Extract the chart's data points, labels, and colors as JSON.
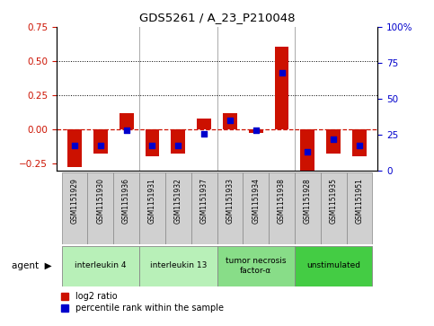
{
  "title": "GDS5261 / A_23_P210048",
  "samples": [
    "GSM1151929",
    "GSM1151930",
    "GSM1151936",
    "GSM1151931",
    "GSM1151932",
    "GSM1151937",
    "GSM1151933",
    "GSM1151934",
    "GSM1151938",
    "GSM1151928",
    "GSM1151935",
    "GSM1151951"
  ],
  "log2_ratio": [
    -0.28,
    -0.18,
    0.12,
    -0.2,
    -0.18,
    0.08,
    0.12,
    -0.03,
    0.6,
    -0.32,
    -0.18,
    -0.2
  ],
  "percentile": [
    17.5,
    17.5,
    28,
    17.5,
    17.5,
    25.5,
    35,
    28,
    68,
    13,
    21.5,
    17.5
  ],
  "groups": [
    {
      "label": "interleukin 4",
      "indices": [
        0,
        1,
        2
      ],
      "color": "#b8f0b8"
    },
    {
      "label": "interleukin 13",
      "indices": [
        3,
        4,
        5
      ],
      "color": "#b8f0b8"
    },
    {
      "label": "tumor necrosis\nfactor-α",
      "indices": [
        6,
        7,
        8
      ],
      "color": "#88dd88"
    },
    {
      "label": "unstimulated",
      "indices": [
        9,
        10,
        11
      ],
      "color": "#44cc44"
    }
  ],
  "ylim_left": [
    -0.3,
    0.75
  ],
  "ylim_right": [
    0,
    100
  ],
  "yticks_left": [
    -0.25,
    0,
    0.25,
    0.5,
    0.75
  ],
  "yticks_right": [
    0,
    25,
    50,
    75,
    100
  ],
  "bar_color": "#cc1100",
  "dot_color": "#0000cc",
  "hline_color": "#cc1100",
  "bg_color": "#ffffff",
  "plot_bg": "#f8f8f8",
  "legend_bar_label": "log2 ratio",
  "legend_dot_label": "percentile rank within the sample",
  "sample_box_color": "#d0d0d0"
}
